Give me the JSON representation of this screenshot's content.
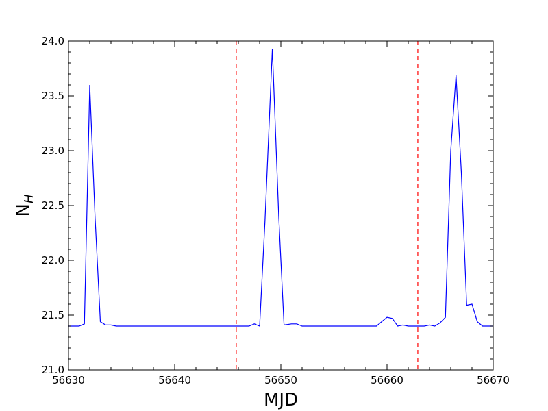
{
  "chart_data": {
    "type": "line",
    "title": "",
    "xlabel": "MJD",
    "ylabel": "N",
    "ylabel_subscript": "H",
    "xlim": [
      56630,
      56670
    ],
    "ylim": [
      21.0,
      24.0
    ],
    "x_ticks": [
      56630,
      56640,
      56650,
      56660,
      56670
    ],
    "x_tick_labels": [
      "56630",
      "56640",
      "56650",
      "56660",
      "56670"
    ],
    "y_ticks": [
      21.0,
      21.5,
      22.0,
      22.5,
      23.0,
      23.5,
      24.0
    ],
    "y_tick_labels": [
      "21.0",
      "21.5",
      "22.0",
      "22.5",
      "23.0",
      "23.5",
      "24.0"
    ],
    "x_minor_step": 2,
    "y_minor_step": 0.1,
    "grid": false,
    "legend": "none",
    "colors": {
      "series": "#0000ff",
      "vlines": "#ff0000"
    },
    "vlines": [
      56645.8,
      56662.9
    ],
    "series": [
      {
        "x": [
          56630,
          56631,
          56631.5,
          56632,
          56632.5,
          56633,
          56633.5,
          56634,
          56634.5,
          56635,
          56636,
          56637,
          56638,
          56639,
          56640,
          56641,
          56642,
          56643,
          56644,
          56645,
          56646,
          56647,
          56647.5,
          56648,
          56648.5,
          56649.2,
          56649.8,
          56650.3,
          56651,
          56651.5,
          56652,
          56653,
          56654,
          56655,
          56656,
          56657,
          56658,
          56659,
          56660,
          56660.5,
          56661,
          56661.5,
          56662,
          56662.5,
          56663,
          56663.5,
          56664,
          56664.5,
          56665,
          56665.5,
          56666,
          56666.5,
          56667,
          56667.5,
          56668,
          56668.5,
          56669,
          56669.5,
          56670
        ],
        "y": [
          21.4,
          21.4,
          21.42,
          23.6,
          22.4,
          21.44,
          21.41,
          21.41,
          21.4,
          21.4,
          21.4,
          21.4,
          21.4,
          21.4,
          21.4,
          21.4,
          21.4,
          21.4,
          21.4,
          21.4,
          21.4,
          21.4,
          21.42,
          21.4,
          22.35,
          23.93,
          22.4,
          21.41,
          21.42,
          21.42,
          21.4,
          21.4,
          21.4,
          21.4,
          21.4,
          21.4,
          21.4,
          21.4,
          21.48,
          21.47,
          21.4,
          21.41,
          21.4,
          21.4,
          21.4,
          21.4,
          21.41,
          21.4,
          21.43,
          21.48,
          23.0,
          23.69,
          22.8,
          21.59,
          21.6,
          21.44,
          21.4,
          21.4,
          21.4
        ]
      }
    ]
  }
}
